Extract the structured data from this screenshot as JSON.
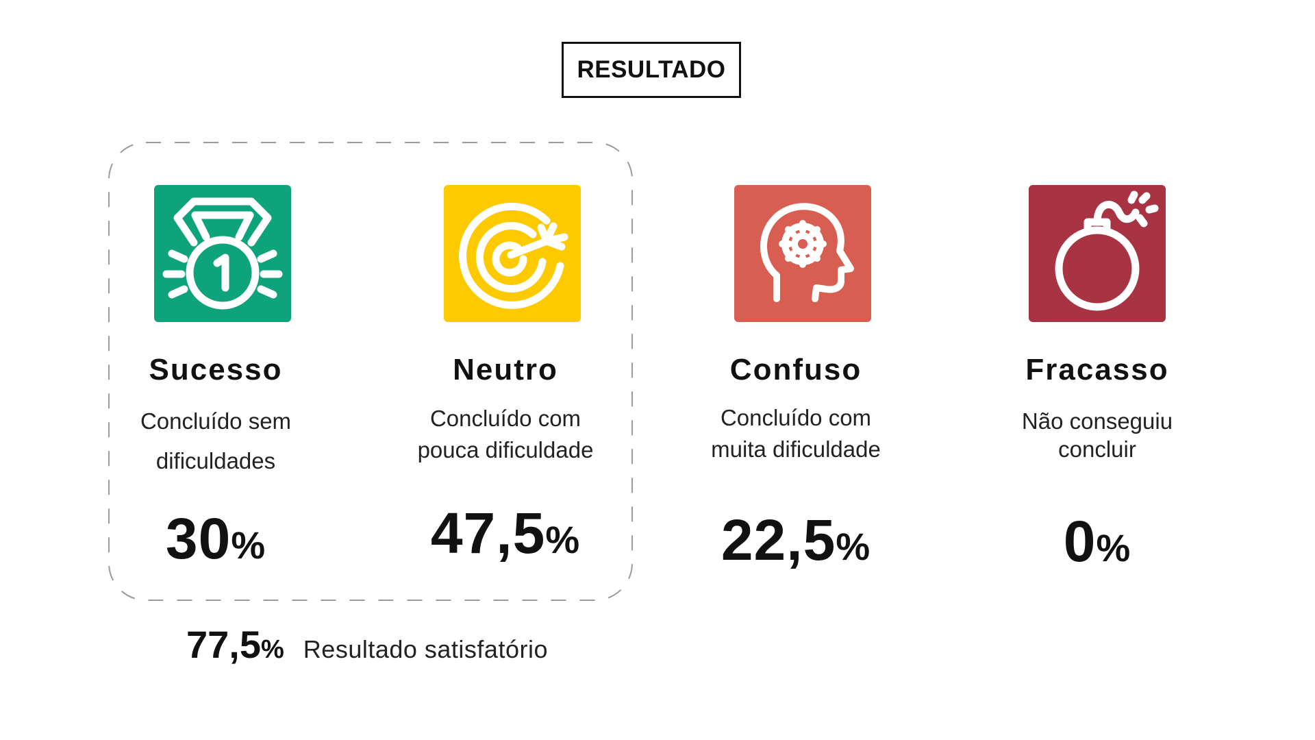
{
  "title": "RESULTADO",
  "colors": {
    "success": "#0fa37c",
    "neutral": "#fdca00",
    "confused": "#d95e52",
    "failure": "#a83343"
  },
  "categories": [
    {
      "label": "Sucesso",
      "desc_line1": "Concluído sem",
      "desc_line2": "dificuldades",
      "value": "30",
      "sign": "%",
      "icon": "medal-icon"
    },
    {
      "label": "Neutro",
      "desc_line1": "Concluído com",
      "desc_line2": "pouca  dificuldade",
      "value": "47,5",
      "sign": "%",
      "icon": "target-icon"
    },
    {
      "label": "Confuso",
      "desc_line1": "Concluído com",
      "desc_line2": "muita  dificuldade",
      "value": "22,5",
      "sign": "%",
      "icon": "head-gear-icon"
    },
    {
      "label": "Fracasso",
      "desc_line1": "Não conseguiu",
      "desc_line2": "concluir",
      "value": "0",
      "sign": "%",
      "icon": "bomb-icon"
    }
  ],
  "summary": {
    "value": "77,5",
    "sign": "%",
    "text": "Resultado  satisfatório"
  }
}
